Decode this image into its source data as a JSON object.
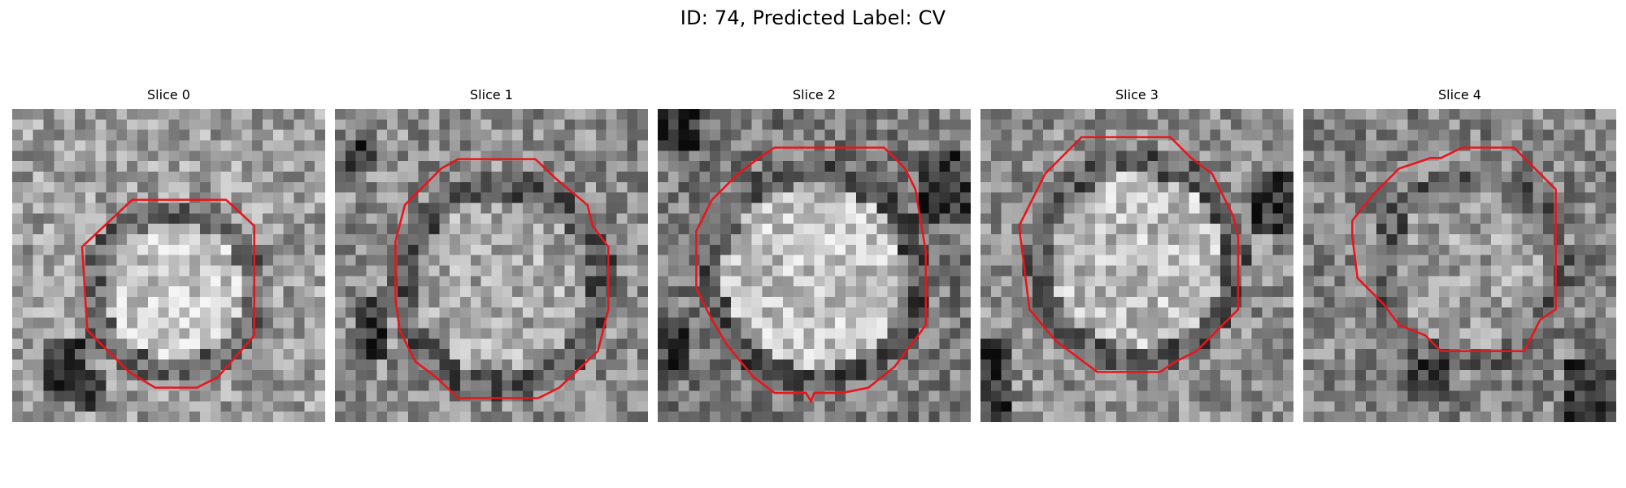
{
  "figure": {
    "title": "ID: 74, Predicted Label: CV"
  },
  "panels": [
    {
      "title": "Slice 0"
    },
    {
      "title": "Slice 1"
    },
    {
      "title": "Slice 2"
    },
    {
      "title": "Slice 3"
    },
    {
      "title": "Slice 4"
    }
  ],
  "contour_color": "#e8151b",
  "colormap": "grayscale"
}
